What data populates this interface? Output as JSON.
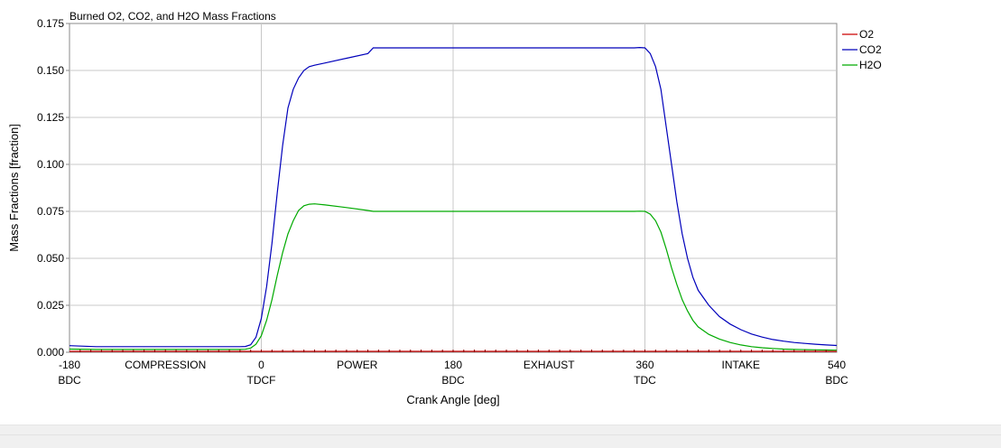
{
  "chart_data": {
    "type": "line",
    "title": "Burned O2, CO2, and H2O Mass Fractions",
    "xlabel": "Crank Angle [deg]",
    "ylabel": "Mass Fractions [fraction]",
    "xlim": [
      -180,
      540
    ],
    "ylim": [
      0,
      0.175
    ],
    "grid": true,
    "legend_position": "right",
    "y_ticks": [
      {
        "value": 0.0,
        "label": "0.000"
      },
      {
        "value": 0.025,
        "label": "0.025"
      },
      {
        "value": 0.05,
        "label": "0.050"
      },
      {
        "value": 0.075,
        "label": "0.075"
      },
      {
        "value": 0.1,
        "label": "0.100"
      },
      {
        "value": 0.125,
        "label": "0.125"
      },
      {
        "value": 0.15,
        "label": "0.150"
      },
      {
        "value": 0.175,
        "label": "0.175"
      }
    ],
    "x_ticks": [
      {
        "value": -180,
        "label": "-180",
        "sublabel": "BDC"
      },
      {
        "value": 0,
        "label": "0",
        "sublabel": "TDCF"
      },
      {
        "value": 180,
        "label": "180",
        "sublabel": "BDC"
      },
      {
        "value": 360,
        "label": "360",
        "sublabel": "TDC"
      },
      {
        "value": 540,
        "label": "540",
        "sublabel": "BDC"
      }
    ],
    "phase_labels": [
      {
        "value": -90,
        "label": "COMPRESSION"
      },
      {
        "value": 90,
        "label": "POWER"
      },
      {
        "value": 270,
        "label": "EXHAUST"
      },
      {
        "value": 450,
        "label": "INTAKE"
      }
    ],
    "series": [
      {
        "name": "O2",
        "color": "#cc0000",
        "x": [
          -180,
          540
        ],
        "y": [
          0.0005,
          0.0005
        ]
      },
      {
        "name": "CO2",
        "color": "#0000bb",
        "x": [
          -180,
          -155,
          -20,
          -15,
          -10,
          -5,
          0,
          5,
          10,
          15,
          20,
          25,
          30,
          35,
          40,
          45,
          50,
          60,
          80,
          100,
          105,
          200,
          300,
          345,
          350,
          355,
          360,
          365,
          370,
          375,
          380,
          385,
          390,
          395,
          400,
          405,
          410,
          420,
          430,
          440,
          450,
          460,
          470,
          480,
          490,
          500,
          510,
          520,
          530,
          540
        ],
        "y": [
          0.0035,
          0.003,
          0.003,
          0.0031,
          0.004,
          0.008,
          0.018,
          0.035,
          0.058,
          0.085,
          0.11,
          0.13,
          0.14,
          0.146,
          0.15,
          0.152,
          0.1528,
          0.154,
          0.1565,
          0.159,
          0.162,
          0.162,
          0.162,
          0.162,
          0.162,
          0.1622,
          0.162,
          0.159,
          0.152,
          0.14,
          0.12,
          0.1,
          0.08,
          0.063,
          0.05,
          0.04,
          0.033,
          0.025,
          0.019,
          0.015,
          0.012,
          0.0097,
          0.0081,
          0.0068,
          0.0059,
          0.0052,
          0.0047,
          0.0043,
          0.0039,
          0.0036
        ]
      },
      {
        "name": "H2O",
        "color": "#00aa00",
        "x": [
          -180,
          -155,
          -20,
          -15,
          -10,
          -5,
          0,
          5,
          10,
          15,
          20,
          25,
          30,
          35,
          40,
          45,
          50,
          60,
          80,
          100,
          105,
          200,
          300,
          345,
          350,
          355,
          360,
          365,
          370,
          375,
          380,
          385,
          390,
          395,
          400,
          405,
          410,
          420,
          430,
          440,
          450,
          460,
          470,
          480,
          490,
          500,
          510,
          520,
          530,
          540
        ],
        "y": [
          0.0017,
          0.0015,
          0.0015,
          0.0016,
          0.0022,
          0.0043,
          0.0088,
          0.017,
          0.028,
          0.041,
          0.053,
          0.063,
          0.07,
          0.0755,
          0.078,
          0.0788,
          0.079,
          0.0784,
          0.077,
          0.0755,
          0.075,
          0.075,
          0.075,
          0.075,
          0.075,
          0.0751,
          0.075,
          0.0735,
          0.07,
          0.064,
          0.055,
          0.045,
          0.036,
          0.028,
          0.022,
          0.017,
          0.0135,
          0.0095,
          0.007,
          0.0052,
          0.0039,
          0.003,
          0.0024,
          0.002,
          0.0017,
          0.0015,
          0.0014,
          0.0013,
          0.0012,
          0.0011
        ]
      }
    ]
  }
}
